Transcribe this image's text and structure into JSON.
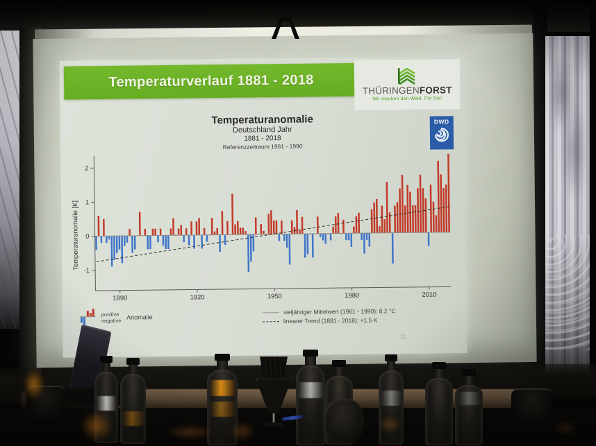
{
  "slide": {
    "header": {
      "title": "Temperaturverlauf 1881 - 2018"
    },
    "logos": {
      "thueringenforst": {
        "name_part1": "THÜRINGEN",
        "name_part2": "FORST",
        "tagline": "Wir machen den Wald. Für Sie!",
        "icon": "chevron-stack-icon"
      },
      "dwd": {
        "label": "DWD",
        "icon": "spiral-icon"
      }
    },
    "page_number": "11"
  },
  "colors": {
    "header_green": "#74b82c",
    "tf_green": "#4f9e24",
    "dwd_blue": "#2a5ca8",
    "positive_bar": "#c23a28",
    "negative_bar": "#4076c8"
  },
  "chart_data": {
    "type": "bar",
    "title": "Temperaturanomalie",
    "subtitle1": "Deutschland Jahr",
    "subtitle2": "1881 - 2018",
    "subtitle3": "Referenzzeitraum 1961 - 1990",
    "ylabel": "Temperaturanomalie [K]",
    "xlabel": "",
    "year_start": 1881,
    "year_end": 2018,
    "x_ticks": [
      1890,
      1920,
      1950,
      1980,
      2010
    ],
    "y_ticks": [
      2,
      1,
      0,
      -1
    ],
    "ylim": [
      -1.6,
      2.35
    ],
    "positive_color": "#c23a28",
    "negative_color": "#4076c8",
    "mean_value": 0,
    "trend": {
      "start_value": -0.75,
      "end_value": 0.75
    },
    "values": [
      -0.4,
      0.6,
      -0.2,
      0.5,
      -0.2,
      -0.1,
      -0.9,
      -0.7,
      -0.5,
      -0.4,
      -0.8,
      -0.3,
      -0.2,
      0.2,
      -0.5,
      -0.4,
      0.0,
      0.7,
      0.0,
      0.2,
      -0.4,
      -0.4,
      0.2,
      0.2,
      -0.2,
      0.2,
      -0.3,
      -0.4,
      -0.4,
      0.2,
      0.5,
      0.0,
      0.2,
      0.3,
      -0.2,
      0.2,
      -0.3,
      0.4,
      -0.4,
      0.4,
      0.5,
      -0.4,
      0.2,
      -0.2,
      0.0,
      0.5,
      0.1,
      0.2,
      -0.5,
      0.7,
      -0.3,
      0.4,
      0.0,
      1.2,
      0.3,
      0.4,
      0.2,
      0.2,
      0.1,
      -1.1,
      -0.8,
      -0.5,
      0.5,
      0.0,
      0.3,
      0.1,
      0.0,
      0.6,
      0.7,
      0.4,
      0.4,
      -0.2,
      0.4,
      -0.2,
      -0.4,
      -0.9,
      0.4,
      0.2,
      0.7,
      0.1,
      0.5,
      -0.7,
      -0.6,
      0.0,
      -0.7,
      0.0,
      0.5,
      -0.1,
      -0.2,
      -0.3,
      0.0,
      -0.2,
      0.2,
      0.5,
      0.6,
      0.0,
      0.4,
      -0.2,
      -0.2,
      -0.4,
      0.2,
      0.5,
      0.6,
      -0.2,
      -0.6,
      -0.2,
      -0.4,
      0.7,
      0.9,
      1.0,
      0.2,
      0.8,
      0.4,
      1.5,
      0.6,
      -0.9,
      0.8,
      0.9,
      1.3,
      1.7,
      0.8,
      1.4,
      1.2,
      0.8,
      0.8,
      1.3,
      1.7,
      1.3,
      1.0,
      -0.4,
      1.4,
      0.9,
      0.5,
      2.1,
      1.7,
      1.3,
      1.4,
      2.3
    ],
    "legend": {
      "positive_label": "positive",
      "negative_label": "negative",
      "anomalie_label": "Anomalie",
      "mean_line_label": "vieljähriger Mittelwert (1961 - 1990): 8.2 °C",
      "trend_line_label": "linearer Trend (1881 - 2018): +1.5 K"
    },
    "grid": false,
    "legend_position": "bottom"
  }
}
